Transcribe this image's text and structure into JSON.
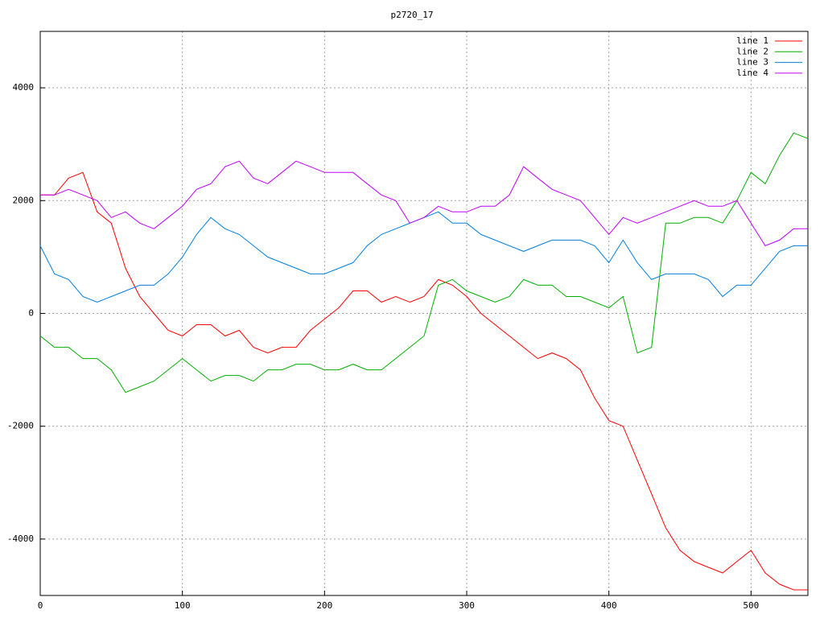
{
  "chart_data": {
    "type": "line",
    "title": "p2720_17",
    "x": [
      0,
      10,
      20,
      30,
      40,
      50,
      60,
      70,
      80,
      90,
      100,
      110,
      120,
      130,
      140,
      150,
      160,
      170,
      180,
      190,
      200,
      210,
      220,
      230,
      240,
      250,
      260,
      270,
      280,
      290,
      300,
      310,
      320,
      330,
      340,
      350,
      360,
      370,
      380,
      390,
      400,
      410,
      420,
      430,
      440,
      450,
      460,
      470,
      480,
      490,
      500,
      510,
      520,
      530,
      540
    ],
    "series": [
      {
        "name": "line 1",
        "color": "#ff0000",
        "values": [
          2100,
          2100,
          2400,
          2500,
          1800,
          1600,
          800,
          300,
          0,
          -300,
          -400,
          -200,
          -200,
          -400,
          -300,
          -600,
          -700,
          -600,
          -600,
          -300,
          -100,
          100,
          400,
          400,
          200,
          300,
          200,
          300,
          600,
          500,
          300,
          0,
          -200,
          -400,
          -600,
          -800,
          -700,
          -800,
          -1000,
          -1500,
          -1900,
          -2000,
          -2600,
          -3200,
          -3800,
          -4200,
          -4400,
          -4500,
          -4600,
          -4400,
          -4200,
          -4600,
          -4800,
          -4900,
          -4900
        ]
      },
      {
        "name": "line 2",
        "color": "#00b000",
        "values": [
          -400,
          -600,
          -600,
          -800,
          -800,
          -1000,
          -1400,
          -1300,
          -1200,
          -1000,
          -800,
          -1000,
          -1200,
          -1100,
          -1100,
          -1200,
          -1000,
          -1000,
          -900,
          -900,
          -1000,
          -1000,
          -900,
          -1000,
          -1000,
          -800,
          -600,
          -400,
          500,
          600,
          400,
          300,
          200,
          300,
          600,
          500,
          500,
          300,
          300,
          200,
          100,
          300,
          -700,
          -600,
          1600,
          1600,
          1700,
          1700,
          1600,
          2000,
          2500,
          2300,
          2800,
          3200,
          3100
        ]
      },
      {
        "name": "line 3",
        "color": "#0080e0",
        "values": [
          1200,
          700,
          600,
          300,
          200,
          300,
          400,
          500,
          500,
          700,
          1000,
          1400,
          1700,
          1500,
          1400,
          1200,
          1000,
          900,
          800,
          700,
          700,
          800,
          900,
          1200,
          1400,
          1500,
          1600,
          1700,
          1800,
          1600,
          1600,
          1400,
          1300,
          1200,
          1100,
          1200,
          1300,
          1300,
          1300,
          1200,
          900,
          1300,
          900,
          600,
          700,
          700,
          700,
          600,
          300,
          500,
          500,
          800,
          1100,
          1200,
          1200
        ]
      },
      {
        "name": "line 4",
        "color": "#c000ff",
        "values": [
          2100,
          2100,
          2200,
          2100,
          2000,
          1700,
          1800,
          1600,
          1500,
          1700,
          1900,
          2200,
          2300,
          2600,
          2700,
          2400,
          2300,
          2500,
          2700,
          2600,
          2500,
          2500,
          2500,
          2300,
          2100,
          2000,
          1600,
          1700,
          1900,
          1800,
          1800,
          1900,
          1900,
          2100,
          2600,
          2400,
          2200,
          2100,
          2000,
          1700,
          1400,
          1700,
          1600,
          1700,
          1800,
          1900,
          2000,
          1900,
          1900,
          2000,
          1600,
          1200,
          1300,
          1500,
          1500
        ]
      }
    ],
    "xlim": [
      0,
      540
    ],
    "xticks": [
      0,
      100,
      200,
      300,
      400,
      500
    ],
    "ylim": [
      -5000,
      5000
    ],
    "yticks": [
      -4000,
      -2000,
      0,
      2000,
      4000
    ],
    "grid": true,
    "legend": "top-right"
  }
}
